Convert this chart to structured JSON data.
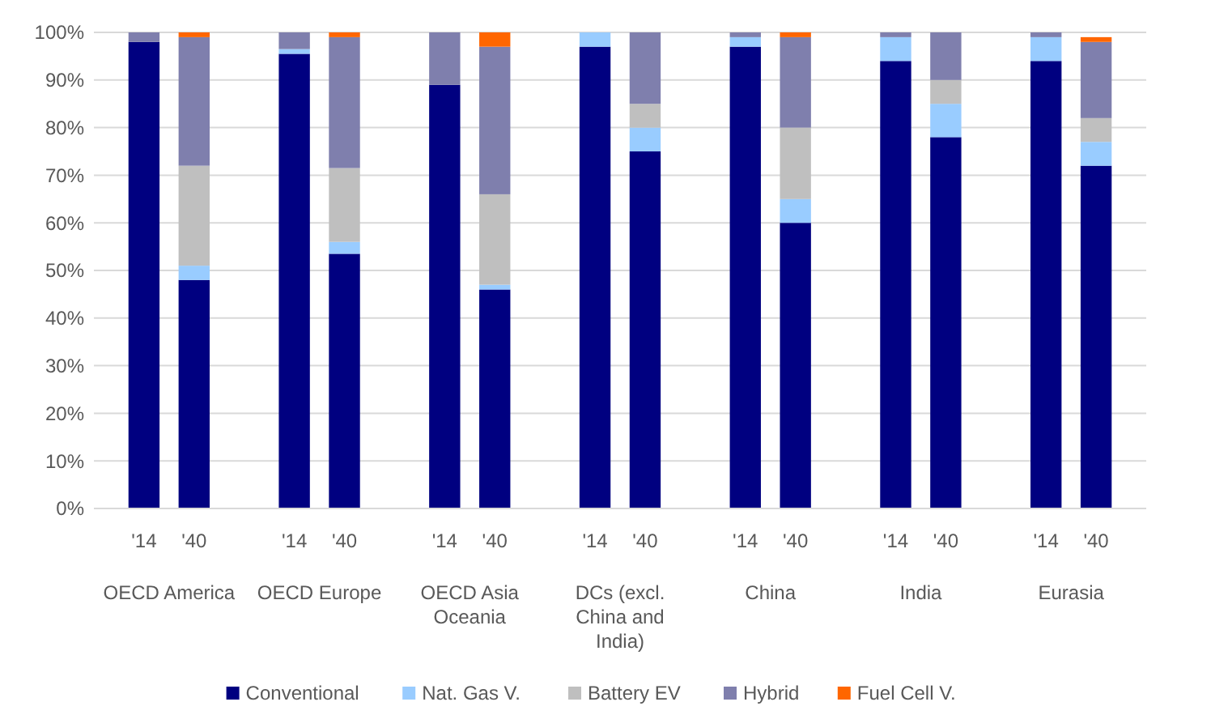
{
  "chart_data": {
    "type": "bar",
    "stacked": true,
    "categories": [
      "'14",
      "'40",
      "'14",
      "'40",
      "'14",
      "'40",
      "'14",
      "'40",
      "'14",
      "'40",
      "'14",
      "'40",
      "'14",
      "'40"
    ],
    "annotations": [
      "OECD America",
      "OECD Europe",
      "OECD Asia Oceania",
      "DCs (excl. China and India)",
      "China",
      "India",
      "Eurasia"
    ],
    "series": [
      {
        "name": "Conventional",
        "color": "#000080",
        "values": [
          98,
          48,
          95.5,
          53.5,
          89,
          46,
          97,
          75,
          97,
          60,
          94,
          78,
          94,
          72
        ]
      },
      {
        "name": "Nat. Gas V.",
        "color": "#99ccff",
        "values": [
          0,
          3,
          1,
          2.5,
          0,
          1,
          3,
          5,
          2,
          5,
          5,
          7,
          5,
          5
        ]
      },
      {
        "name": "Battery EV",
        "color": "#bfbfbf",
        "values": [
          0,
          21,
          0,
          15.5,
          0,
          19,
          0,
          5,
          0,
          15,
          0,
          5,
          0,
          5
        ]
      },
      {
        "name": "Hybrid",
        "color": "#7f7fad",
        "values": [
          2,
          27,
          3.5,
          27.5,
          11,
          31,
          0,
          15,
          1,
          19,
          1,
          10,
          1,
          16
        ]
      },
      {
        "name": "Fuel Cell V.",
        "color": "#ff6600",
        "values": [
          0,
          1,
          0,
          1,
          0,
          3,
          0,
          0,
          0,
          1,
          0,
          0,
          0,
          1
        ]
      }
    ],
    "ylim": [
      0,
      100
    ],
    "yticks": [
      {
        "value": 0,
        "label": "0%"
      },
      {
        "value": 10,
        "label": "10%"
      },
      {
        "value": 20,
        "label": "20%"
      },
      {
        "value": 30,
        "label": "30%"
      },
      {
        "value": 40,
        "label": "40%"
      },
      {
        "value": 50,
        "label": "50%"
      },
      {
        "value": 60,
        "label": "60%"
      },
      {
        "value": 70,
        "label": "70%"
      },
      {
        "value": 80,
        "label": "80%"
      },
      {
        "value": 90,
        "label": "90%"
      },
      {
        "value": 100,
        "label": "100%"
      }
    ],
    "grid": "y",
    "legend": "bottom"
  }
}
